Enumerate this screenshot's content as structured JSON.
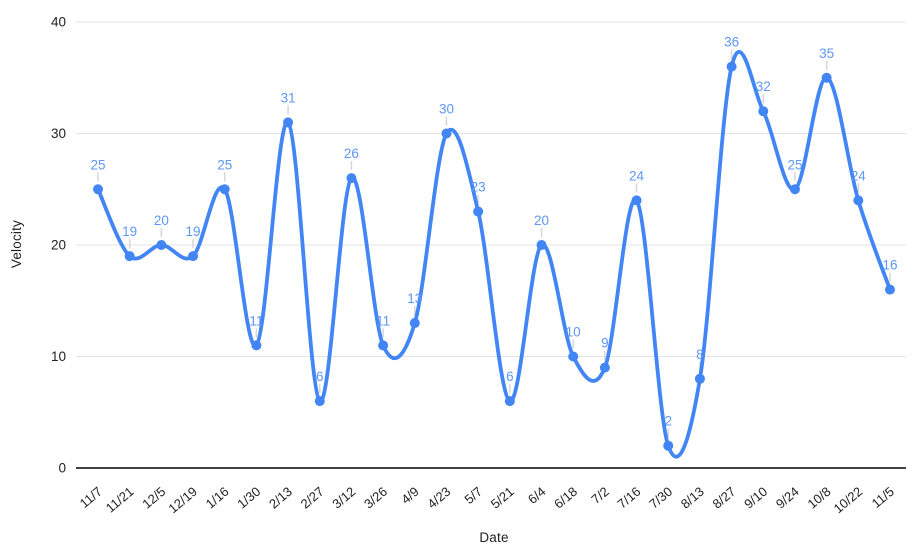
{
  "chart_data": {
    "type": "line",
    "smooth": true,
    "title": "",
    "xlabel": "Date",
    "ylabel": "Velocity",
    "categories": [
      "11/7",
      "11/21",
      "12/5",
      "12/19",
      "1/16",
      "1/30",
      "2/13",
      "2/27",
      "3/12",
      "3/26",
      "4/9",
      "4/23",
      "5/7",
      "5/21",
      "6/4",
      "6/18",
      "7/2",
      "7/16",
      "7/30",
      "8/13",
      "8/27",
      "9/10",
      "9/24",
      "10/8",
      "10/22",
      "11/5"
    ],
    "values": [
      25,
      19,
      20,
      19,
      25,
      11,
      31,
      6,
      26,
      11,
      13,
      30,
      23,
      6,
      20,
      10,
      9,
      24,
      2,
      8,
      36,
      32,
      25,
      35,
      24,
      16
    ],
    "ylim": [
      0,
      40
    ],
    "yticks": [
      0,
      10,
      20,
      30,
      40
    ],
    "grid": true,
    "legend": "none",
    "point_labels_visible": true,
    "colors": {
      "line": "#4285f4",
      "point": "#4285f4",
      "point_label": "#5e97f6",
      "gridline": "#e3e3e3",
      "baseline": "#424242",
      "tick_text": "#1f1f1f",
      "axis_title_text": "#1f1f1f",
      "label_leader": "#d6d6d6",
      "background": "#ffffff"
    }
  }
}
